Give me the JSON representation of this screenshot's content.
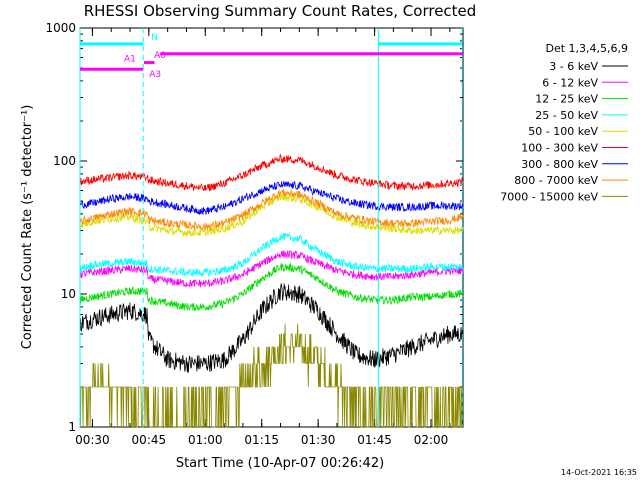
{
  "chart_data": {
    "type": "line",
    "title": "RHESSI Observing Summary Count Rates, Corrected",
    "xlabel": "Start Time (10-Apr-07 00:26:42)",
    "ylabel": "Corrected Count Rate (s⁻¹ detector⁻¹)",
    "yscale": "log",
    "ylim": [
      1,
      1000
    ],
    "xlim_minutes": [
      26.7,
      128.5
    ],
    "x_tick_labels": [
      "00:30",
      "00:45",
      "01:00",
      "01:15",
      "01:30",
      "01:45",
      "02:00"
    ],
    "x_ticks_minutes": [
      30,
      45,
      60,
      75,
      90,
      105,
      120
    ],
    "y_tick_labels": [
      "1",
      "10",
      "100",
      "1000"
    ],
    "y_ticks": [
      1,
      10,
      100,
      1000
    ],
    "legend_title": "Det 1,3,4,5,6,9",
    "legend_position": "right",
    "timestamp": "14-Oct-2021 16:35",
    "x_minutes": [
      26.7,
      30,
      35,
      40,
      44.5,
      45,
      50,
      55,
      60,
      65,
      70,
      75,
      80,
      85,
      90,
      95,
      100,
      105,
      110,
      115,
      120,
      125,
      128.5
    ],
    "series": [
      {
        "name": "3 - 6 keV",
        "color": "#000000",
        "values": [
          6,
          6.5,
          7,
          7.5,
          7,
          4.5,
          3.2,
          3,
          3,
          3.2,
          4.5,
          7.5,
          10.5,
          10,
          7.5,
          5,
          3.5,
          3.2,
          3.5,
          4,
          4.5,
          5,
          5
        ]
      },
      {
        "name": "6 - 12 keV",
        "color": "#ff00ff",
        "values": [
          14,
          14.5,
          15,
          15.5,
          15,
          13,
          12.5,
          12,
          12,
          12.5,
          14,
          17,
          20,
          19.5,
          17,
          15,
          14,
          13.5,
          13.5,
          14,
          14.5,
          15,
          15
        ]
      },
      {
        "name": "12 - 25 keV",
        "color": "#00dd00",
        "values": [
          9,
          9.5,
          10,
          10.5,
          10.5,
          9,
          8.5,
          8,
          8,
          8.5,
          10,
          13,
          16,
          15.5,
          13,
          10.5,
          9.5,
          9,
          9,
          9.5,
          9.5,
          10,
          10
        ]
      },
      {
        "name": "25 - 50 keV",
        "color": "#00ffff",
        "values": [
          15.5,
          16.5,
          17,
          17.5,
          17,
          15.5,
          15,
          14.5,
          14.5,
          15,
          17,
          22,
          27,
          26,
          21,
          17.5,
          16,
          15.5,
          15.5,
          15.5,
          16,
          16,
          16
        ]
      },
      {
        "name": "50 - 100 keV",
        "color": "#dddd00",
        "values": [
          33,
          35,
          37,
          38,
          35,
          32,
          30,
          29,
          29,
          31,
          35,
          45,
          54,
          52,
          45,
          38,
          34,
          32,
          31,
          30,
          30,
          30,
          30
        ]
      },
      {
        "name": "100 - 300 keV",
        "color": "#ff0000",
        "values": [
          70,
          72,
          75,
          78,
          75,
          72,
          68,
          65,
          62,
          68,
          78,
          92,
          104,
          102,
          90,
          78,
          72,
          68,
          65,
          65,
          66,
          68,
          70
        ]
      },
      {
        "name": "300 - 800 keV",
        "color": "#0000ff",
        "values": [
          47,
          48,
          52,
          54,
          52,
          50,
          47,
          44,
          42,
          45,
          52,
          60,
          66,
          65,
          58,
          52,
          48,
          46,
          45,
          45,
          46,
          46,
          46
        ]
      },
      {
        "name": "800 - 7000 keV",
        "color": "#ff8800",
        "values": [
          35,
          37,
          40,
          42,
          40,
          36,
          34,
          33,
          32,
          34,
          39,
          48,
          58,
          56,
          48,
          40,
          37,
          35,
          34,
          34,
          35,
          36,
          38
        ]
      },
      {
        "name": "7000 - 15000 keV",
        "color": "#888800",
        "values": [
          1.5,
          2,
          2,
          1.5,
          1.5,
          1.3,
          1.3,
          1.2,
          1.3,
          1.5,
          2,
          3,
          4,
          4,
          3,
          2,
          1.5,
          1.3,
          1.5,
          1.5,
          1.5,
          1.5,
          1.5
        ]
      }
    ],
    "attenuator_bars": [
      {
        "label": "N",
        "color": "#00ffff",
        "level": 760,
        "segments": [
          [
            26.7,
            43.5
          ],
          [
            106,
            128.3
          ]
        ]
      },
      {
        "label": "A0",
        "color": "#ff00ff",
        "level": 640,
        "segments": [
          [
            48,
            128.3
          ]
        ]
      },
      {
        "label": "A1",
        "color": "#ff00ff",
        "level": 550,
        "segments": [
          [
            43.7,
            46.5
          ]
        ]
      },
      {
        "label": "A3",
        "color": "#ff00ff",
        "level": 490,
        "segments": [
          [
            26.7,
            43.5
          ]
        ]
      }
    ],
    "vertical_markers": [
      {
        "color": "#00ffff",
        "minutes": 26.7,
        "style": "solid"
      },
      {
        "color": "#00ffff",
        "minutes": 43.5,
        "style": "dashed"
      },
      {
        "color": "#00ffff",
        "minutes": 106,
        "style": "solid"
      },
      {
        "color": "#00ffff",
        "minutes": 128.3,
        "style": "dashed"
      }
    ]
  }
}
